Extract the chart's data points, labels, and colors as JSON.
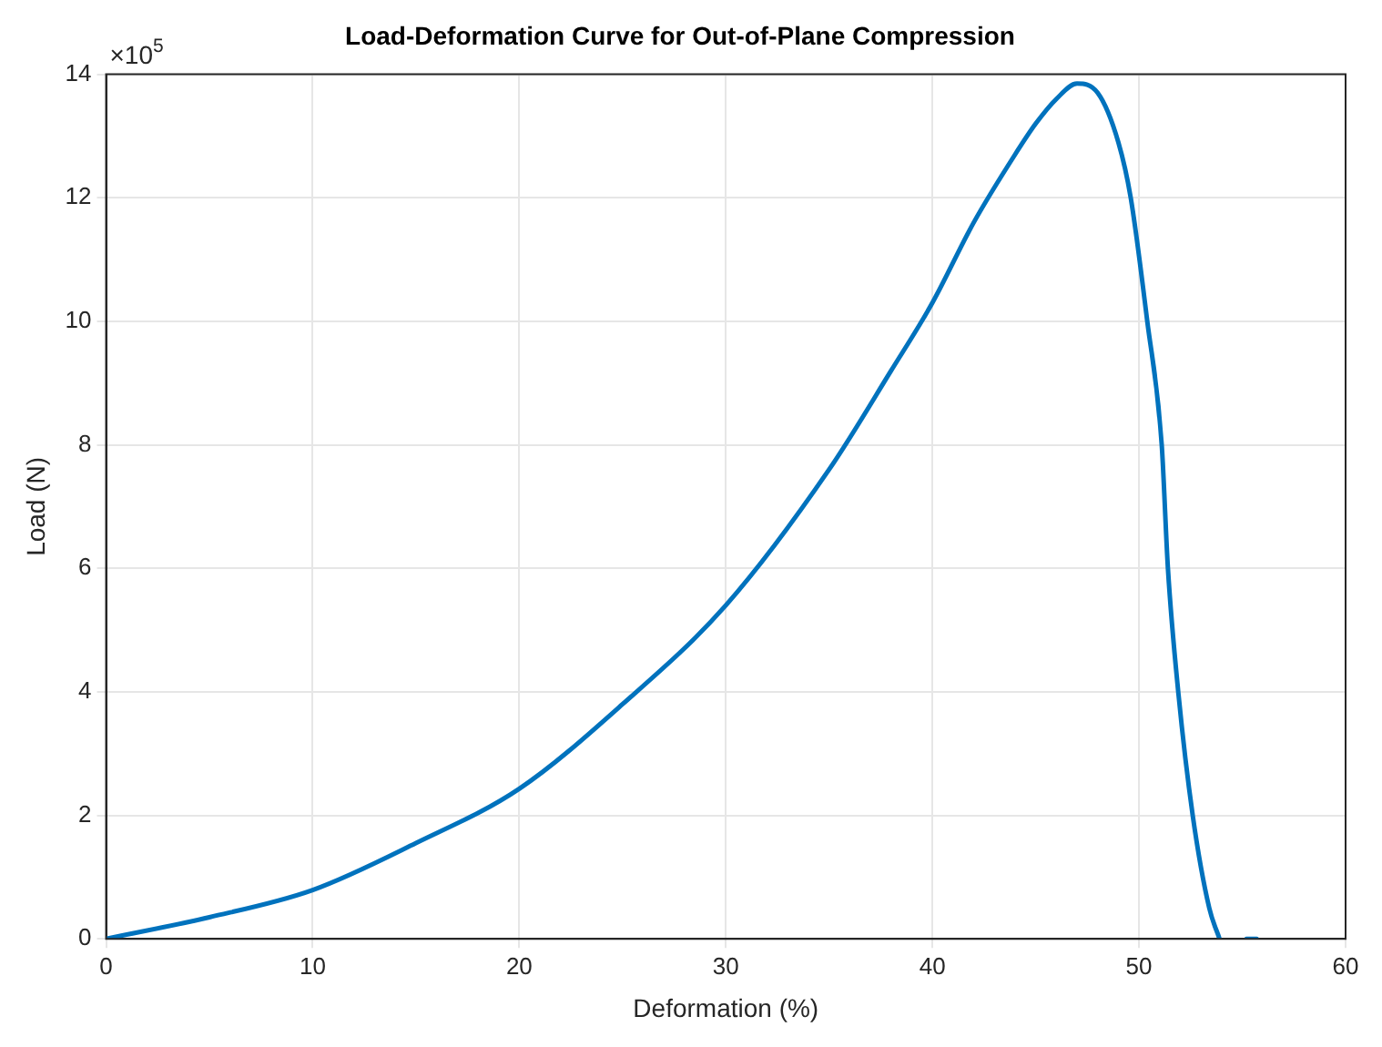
{
  "chart_data": {
    "type": "line",
    "title": "Load-Deformation Curve for Out-of-Plane Compression",
    "xlabel": "Deformation (%)",
    "ylabel": "Load (N)",
    "annotations": [
      "×10$^{5}$"
    ],
    "x": [
      0,
      5,
      10,
      15,
      20,
      25,
      30,
      35,
      38,
      40,
      42,
      44,
      45,
      46,
      47,
      48,
      49,
      49.6,
      50.4,
      51.1,
      51.4,
      51.9,
      52.6,
      53.4,
      53.9,
      54.5,
      55.2,
      55.7
    ],
    "series": [
      {
        "color": "#0072bd",
        "values": [
          0,
          0.35,
          0.79,
          1.55,
          2.43,
          3.8,
          5.4,
          7.6,
          9.2,
          10.3,
          11.6,
          12.7,
          13.2,
          13.6,
          13.85,
          13.7,
          12.9,
          12,
          10,
          8,
          6,
          4,
          2,
          0.5,
          0,
          null,
          0,
          0
        ]
      }
    ],
    "xlim": [
      0,
      60
    ],
    "xticks": [
      0,
      10,
      20,
      30,
      40,
      50,
      60
    ],
    "ylim": [
      0,
      14
    ],
    "yticks": [
      0,
      2,
      4,
      6,
      8,
      10,
      12,
      14
    ],
    "grid": true,
    "legend": false,
    "marker": "none",
    "line_style": "solid"
  }
}
